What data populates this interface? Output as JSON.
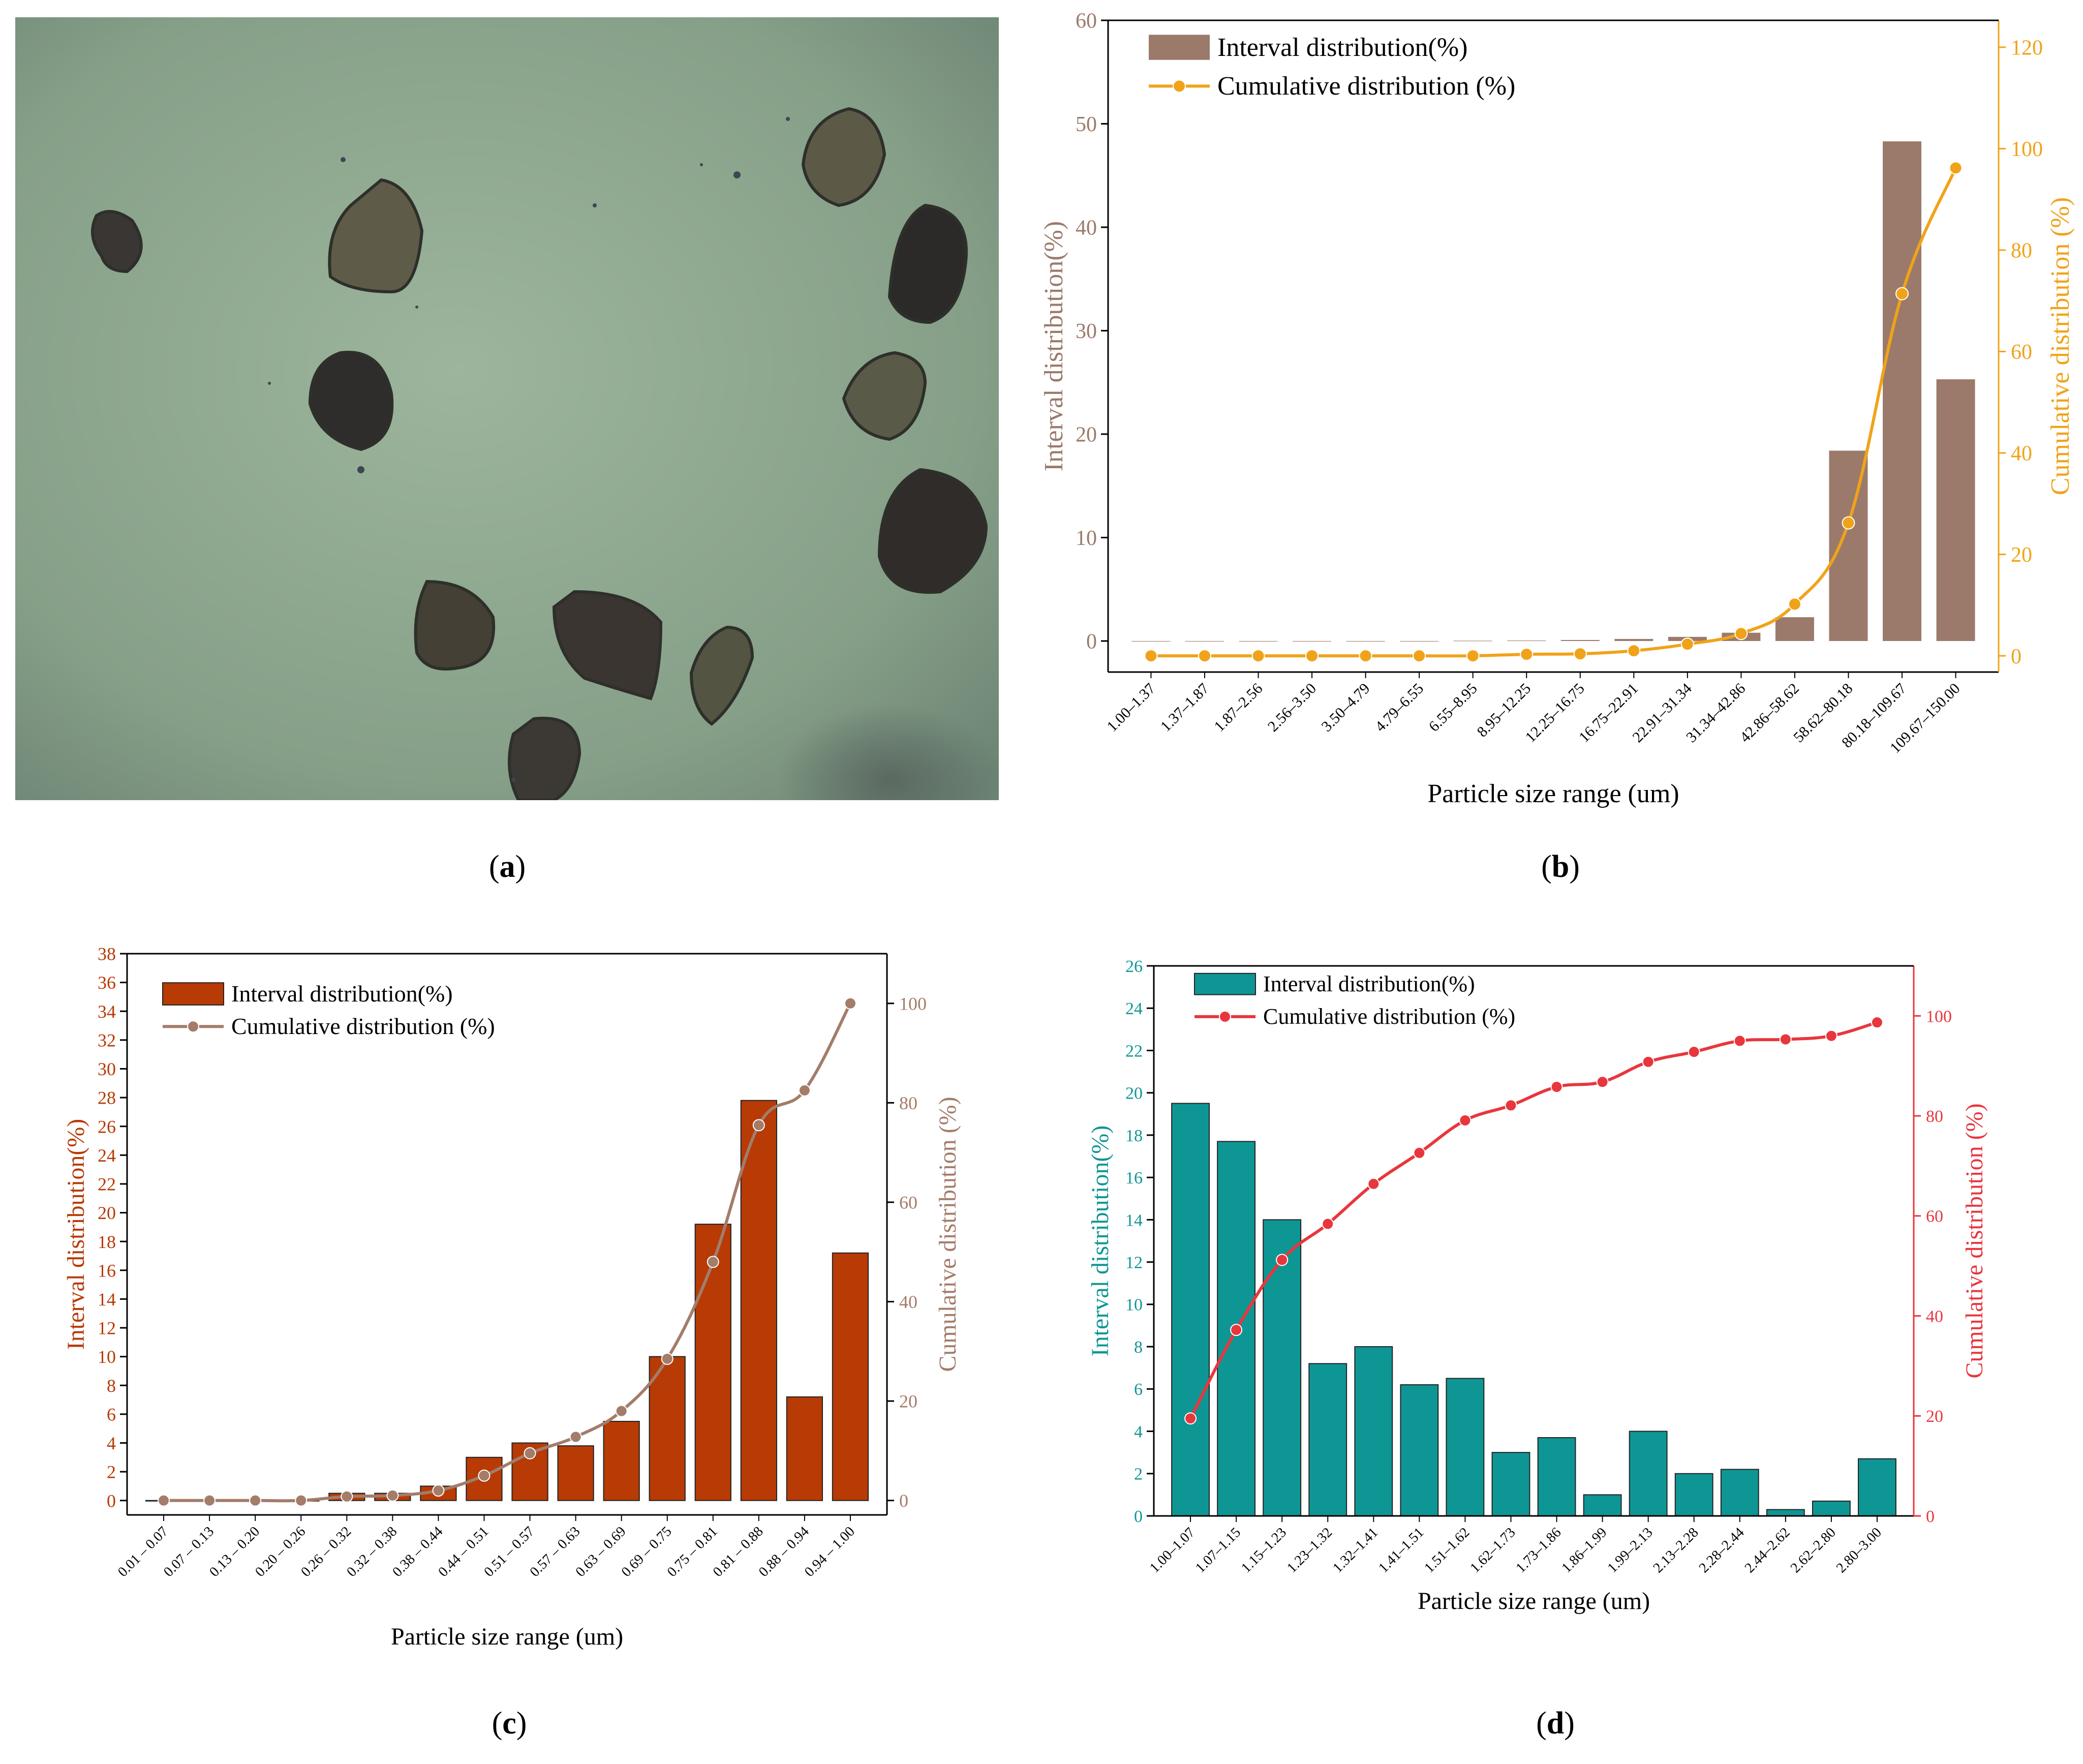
{
  "captions": {
    "a": "a",
    "b": "b",
    "c": "c",
    "d": "d"
  },
  "micrograph": {
    "description_icon": "particle-micrograph",
    "background_color": "#8ca58c"
  },
  "chart_data": [
    {
      "id": "b",
      "type": "bar",
      "categories": [
        "1.00–1.37",
        "1.37–1.87",
        "1.87–2.56",
        "2.56–3.50",
        "3.50–4.79",
        "4.79–6.55",
        "6.55–8.95",
        "8.95–12.25",
        "12.25–16.75",
        "16.75–22.91",
        "22.91–31.34",
        "31.34–42.86",
        "42.86–58.62",
        "58.62–80.18",
        "80.18–109.67",
        "109.67–150.00"
      ],
      "series": [
        {
          "name": "Interval distribution(%)",
          "type": "bar",
          "axis": "left",
          "values": [
            0,
            0,
            0,
            0,
            0,
            0,
            0.03,
            0.05,
            0.1,
            0.2,
            0.4,
            0.8,
            2.3,
            18.4,
            48.3,
            25.3
          ]
        },
        {
          "name": "Cumulative distribution (%)",
          "type": "line",
          "axis": "right",
          "values": [
            0,
            0,
            0,
            0,
            0,
            0,
            0,
            0.3,
            0.4,
            1,
            2.3,
            4.4,
            10.2,
            26.2,
            71.4,
            96.2
          ]
        }
      ],
      "title": "",
      "xlabel": "Particle size range (um)",
      "ylabel": "Interval distribution(%)",
      "y2label": "Cumulative distribution (%)",
      "ylim": [
        -3,
        60
      ],
      "yticks": [
        0,
        10,
        20,
        30,
        40,
        50,
        60
      ],
      "y2lim": [
        -3.2,
        125.3
      ],
      "y2ticks": [
        0,
        20,
        40,
        60,
        80,
        100,
        120
      ],
      "colors": {
        "bar": "#9b7a6b",
        "line": "#f0a319",
        "left_axis": "#9b7a6b",
        "right_axis": "#f0a319"
      },
      "legend": "top-left"
    },
    {
      "id": "c",
      "type": "bar",
      "categories": [
        "0.01 – 0.07",
        "0.07 – 0.13",
        "0.13 – 0.20",
        "0.20 – 0.26",
        "0.26 – 0.32",
        "0.32 – 0.38",
        "0.38 – 0.44",
        "0.44 – 0.51",
        "0.51 – 0.57",
        "0.57 – 0.63",
        "0.63 – 0.69",
        "0.69 – 0.75",
        "0.75 – 0.81",
        "0.81 – 0.88",
        "0.88 – 0.94",
        "0.94 – 1.00"
      ],
      "series": [
        {
          "name": "Interval distribution(%)",
          "type": "bar",
          "axis": "left",
          "values": [
            0,
            0,
            0,
            0,
            0.5,
            0.5,
            1.0,
            3.0,
            4.0,
            3.8,
            5.5,
            10.0,
            19.2,
            27.8,
            7.2,
            17.2
          ]
        },
        {
          "name": "Cumulative distribution (%)",
          "type": "line",
          "axis": "right",
          "values": [
            0,
            0,
            0,
            0,
            0.8,
            1.0,
            2.0,
            5.0,
            9.5,
            12.8,
            18.0,
            28.5,
            48.0,
            75.5,
            82.5,
            100.0
          ]
        }
      ],
      "title": "",
      "xlabel": "Particle size range (um)",
      "ylabel": "Interval distribution(%)",
      "y2label": "Cumulative distribution (%)",
      "ylim": [
        -1,
        38
      ],
      "yticks": [
        0,
        2,
        4,
        6,
        8,
        10,
        12,
        14,
        16,
        18,
        20,
        22,
        24,
        26,
        28,
        30,
        32,
        34,
        36,
        38
      ],
      "y2lim": [
        -2.9,
        110
      ],
      "y2ticks": [
        0,
        20,
        40,
        60,
        80,
        100
      ],
      "colors": {
        "bar": "#b83a05",
        "line": "#a37c6a",
        "left_axis": "#b83a05",
        "right_axis": "#a37c6a"
      },
      "legend": "top-left"
    },
    {
      "id": "d",
      "type": "bar",
      "categories": [
        "1.00–1.07",
        "1.07–1.15",
        "1.15–1.23",
        "1.23–1.32",
        "1.32–1.41",
        "1.41–1.51",
        "1.51–1.62",
        "1.62–1.73",
        "1.73–1.86",
        "1.86–1.99",
        "1.99–2.13",
        "2.13–2.28",
        "2.28–2.44",
        "2.44–2.62",
        "2.62–2.80",
        "2.80–3.00"
      ],
      "series": [
        {
          "name": "Interval distribution(%)",
          "type": "bar",
          "axis": "left",
          "values": [
            19.5,
            17.7,
            14.0,
            7.2,
            8.0,
            6.2,
            6.5,
            3.0,
            3.7,
            1.0,
            4.0,
            2.0,
            2.2,
            0.3,
            0.7,
            2.7
          ]
        },
        {
          "name": "Cumulative distribution (%)",
          "type": "line",
          "axis": "right",
          "values": [
            19.5,
            37.2,
            51.2,
            58.4,
            66.4,
            72.6,
            79.1,
            82.1,
            85.8,
            86.8,
            90.8,
            92.8,
            95.0,
            95.3,
            96.0,
            98.7
          ]
        }
      ],
      "title": "",
      "xlabel": "Particle size range (um)",
      "ylabel": "Interval distribution(%)",
      "y2label": "Cumulative distribution (%)",
      "ylim": [
        0,
        26
      ],
      "yticks": [
        0,
        2,
        4,
        6,
        8,
        10,
        12,
        14,
        16,
        18,
        20,
        22,
        24,
        26
      ],
      "y2lim": [
        0,
        110
      ],
      "y2ticks": [
        0,
        20,
        40,
        60,
        80,
        100
      ],
      "colors": {
        "bar": "#0e9695",
        "line": "#e8363d",
        "left_axis": "#0e9695",
        "right_axis": "#e8363d"
      },
      "legend": "top-left"
    }
  ]
}
